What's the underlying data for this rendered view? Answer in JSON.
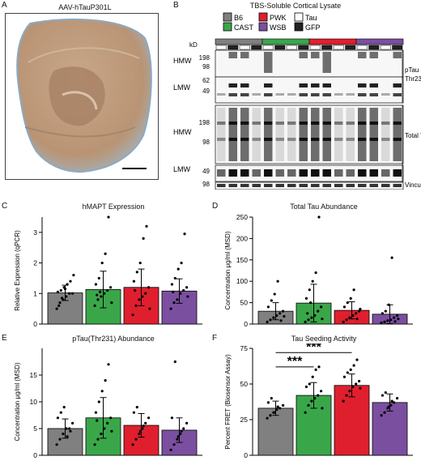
{
  "panels": {
    "a": {
      "letter": "A",
      "title": "AAV-hTauP301L"
    },
    "b": {
      "letter": "B",
      "title": "TBS-Soluble Cortical Lysate",
      "legend": [
        {
          "label": "B6",
          "color": "#808080"
        },
        {
          "label": "CAST",
          "color": "#3aa64a"
        },
        {
          "label": "PWK",
          "color": "#e01f2e"
        },
        {
          "label": "WSB",
          "color": "#7b4fa0"
        },
        {
          "label": "Tau",
          "color": "#ffffff"
        },
        {
          "label": "GFP",
          "color": "#222222"
        }
      ],
      "kd_label": "kD",
      "blots": [
        {
          "group": "HMW",
          "markers": [
            "198",
            "98"
          ],
          "right_label": "pTau"
        },
        {
          "group": "LMW",
          "markers": [
            "62",
            "49"
          ],
          "right_label": "Thr231"
        },
        {
          "group": "HMW",
          "markers": [
            "198",
            "98"
          ],
          "right_label": "Total Tau"
        },
        {
          "group": "LMW",
          "markers": [
            "49"
          ],
          "right_label": ""
        },
        {
          "group": "",
          "markers": [
            "98"
          ],
          "right_label": "Vinculin"
        }
      ]
    },
    "c": {
      "letter": "C",
      "title": "hMAPT Expression",
      "ylabel": "Relative Expression (qPCR)"
    },
    "d": {
      "letter": "D",
      "title": "Total Tau Abundance",
      "ylabel": "Concentration μg/ml (MSD)"
    },
    "e": {
      "letter": "E",
      "title": "pTau(Thr231) Abundance",
      "ylabel": "Concentration μg/ml (MSD)"
    },
    "f": {
      "letter": "F",
      "title": "Tau Seeding Activity",
      "ylabel": "Percent FRET (Biosensor Assay)",
      "sig1": "***",
      "sig2": "***"
    }
  },
  "colors": {
    "B6": "#808080",
    "CAST": "#3aa64a",
    "PWK": "#e01f2e",
    "WSB": "#7b4fa0"
  },
  "chart_data": [
    {
      "id": "c",
      "type": "bar",
      "title": "hMAPT Expression",
      "ylabel": "Relative Expression (qPCR)",
      "categories": [
        "B6",
        "CAST",
        "PWK",
        "WSB"
      ],
      "values": [
        1.02,
        1.13,
        1.2,
        1.08
      ],
      "sd": [
        0.25,
        0.6,
        0.6,
        0.4
      ],
      "ylim": [
        0,
        3.5
      ],
      "yticks": [
        0,
        1,
        2,
        3
      ],
      "points": [
        [
          0.5,
          0.7,
          0.8,
          0.9,
          1.0,
          1.0,
          1.05,
          1.1,
          1.2,
          1.3,
          1.4,
          1.6,
          0.6,
          0.85,
          1.15
        ],
        [
          0.6,
          0.8,
          0.9,
          1.0,
          1.1,
          1.2,
          1.3,
          1.5,
          2.0,
          2.3,
          3.5,
          0.7,
          0.95,
          1.05
        ],
        [
          0.3,
          0.6,
          0.8,
          0.9,
          1.0,
          1.2,
          1.4,
          1.7,
          2.0,
          2.8,
          3.2,
          0.5,
          1.1
        ],
        [
          0.5,
          0.7,
          0.8,
          1.0,
          1.1,
          1.2,
          1.3,
          1.5,
          1.8,
          2.0,
          2.95,
          0.9,
          1.05
        ]
      ]
    },
    {
      "id": "d",
      "type": "bar",
      "title": "Total Tau Abundance",
      "ylabel": "Concentration μg/ml (MSD)",
      "categories": [
        "B6",
        "CAST",
        "PWK",
        "WSB"
      ],
      "values": [
        30,
        49,
        32,
        23
      ],
      "sd": [
        20,
        44,
        20,
        22
      ],
      "ylim": [
        0,
        250
      ],
      "yticks": [
        0,
        50,
        100,
        150,
        200,
        250
      ],
      "points": [
        [
          5,
          10,
          15,
          20,
          25,
          30,
          40,
          55,
          70,
          100,
          8,
          18
        ],
        [
          5,
          10,
          15,
          20,
          30,
          40,
          60,
          80,
          100,
          120,
          250,
          12,
          25,
          50
        ],
        [
          5,
          10,
          15,
          20,
          25,
          30,
          40,
          50,
          60,
          80,
          12,
          35
        ],
        [
          3,
          5,
          8,
          10,
          15,
          20,
          25,
          30,
          45,
          155,
          6,
          12
        ]
      ]
    },
    {
      "id": "e",
      "type": "bar",
      "title": "pTau(Thr231) Abundance",
      "ylabel": "Concentration μg/ml (MSD)",
      "categories": [
        "B6",
        "CAST",
        "PWK",
        "WSB"
      ],
      "values": [
        5.0,
        7.0,
        5.6,
        4.7
      ],
      "sd": [
        1.8,
        3.8,
        2.2,
        2.3
      ],
      "ylim": [
        0,
        20
      ],
      "yticks": [
        0,
        5,
        10,
        15
      ],
      "points": [
        [
          2,
          3,
          4,
          5,
          5,
          6,
          7,
          8,
          9,
          3.5,
          4.5
        ],
        [
          2,
          3,
          4,
          5,
          6,
          7,
          8,
          10,
          12,
          14,
          17,
          4.5,
          6.5
        ],
        [
          2,
          3,
          4,
          5,
          6,
          7,
          8,
          9,
          4.5,
          5.5
        ],
        [
          1,
          2,
          3,
          4,
          5,
          6,
          7,
          17.5,
          3.5,
          4.5
        ]
      ]
    },
    {
      "id": "f",
      "type": "bar",
      "title": "Tau Seeding Activity",
      "ylabel": "Percent FRET (Biosensor Assay)",
      "categories": [
        "B6",
        "CAST",
        "PWK",
        "WSB"
      ],
      "values": [
        33,
        42,
        49,
        37
      ],
      "sd": [
        5,
        9,
        8,
        6
      ],
      "ylim": [
        0,
        75
      ],
      "yticks": [
        0,
        25,
        50,
        75
      ],
      "points": [
        [
          26,
          28,
          30,
          32,
          33,
          35,
          37,
          40,
          30,
          34
        ],
        [
          30,
          35,
          38,
          40,
          42,
          45,
          48,
          50,
          55,
          60,
          62,
          33
        ],
        [
          38,
          42,
          45,
          48,
          50,
          52,
          55,
          58,
          60,
          63,
          67,
          47
        ],
        [
          28,
          30,
          33,
          35,
          37,
          40,
          42,
          44,
          34,
          38
        ]
      ]
    }
  ]
}
